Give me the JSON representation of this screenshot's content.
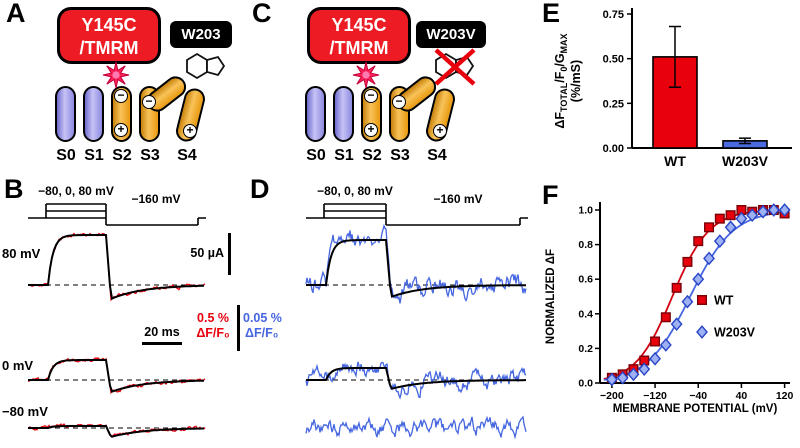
{
  "panel_a": {
    "letter": "A",
    "box_red_line1": "Y145C",
    "box_red_line2": "/TMRM",
    "box_black": "W203",
    "segments": [
      "S0",
      "S1",
      "S2",
      "S3",
      "S4"
    ]
  },
  "panel_b": {
    "letter": "B",
    "protocol_pulse": "−80, 0, 80 mV",
    "protocol_tail": "−160 mV",
    "trace_labels": [
      "80 mV",
      "0 mV",
      "−80 mV"
    ],
    "scale_current": "50 µA",
    "scale_time": "20 ms",
    "scale_df_value": "0.5 %",
    "scale_df_unit": "ΔF/F₀",
    "trace_color": "#e8000d",
    "traces": [
      {
        "name": "80mV",
        "plateau": 50,
        "dip": 14,
        "noise": 2.1
      },
      {
        "name": "0mV",
        "plateau": 20,
        "dip": 12,
        "noise": 2.1
      },
      {
        "name": "minus80mV",
        "plateau": 2,
        "dip": 9,
        "noise": 1.9
      }
    ]
  },
  "panel_c": {
    "letter": "C",
    "box_red_line1": "Y145C",
    "box_red_line2": "/TMRM",
    "box_black": "W203V",
    "segments": [
      "S0",
      "S1",
      "S2",
      "S3",
      "S4"
    ]
  },
  "panel_d": {
    "letter": "D",
    "protocol_pulse": "−80, 0, 80 mV",
    "protocol_tail": "−160 mV",
    "scale_df_value": "0.05 %",
    "scale_df_unit": "ΔF/F₀",
    "trace_color": "#4566e0",
    "traces": [
      {
        "name": "80mV",
        "plateau": 45,
        "dip": 12,
        "noise": 11,
        "fit": true
      },
      {
        "name": "0mV",
        "plateau": 12,
        "dip": 9,
        "noise": 10,
        "fit": true
      },
      {
        "name": "minus80mV",
        "plateau": 0,
        "dip": 0,
        "noise": 9,
        "fit": false,
        "dashed": false
      }
    ]
  },
  "panel_e": {
    "letter": "E"
  },
  "panel_f": {
    "letter": "F"
  },
  "chart_data": [
    {
      "panel": "E",
      "type": "bar",
      "categories": [
        "WT",
        "W203V"
      ],
      "values": [
        0.51,
        0.04
      ],
      "errors": [
        0.17,
        0.015
      ],
      "bar_colors": [
        "#e8000d",
        "#4a6be0"
      ],
      "ylabel": "ΔF_TOTAL/F_0/G_MAX (%/mS)",
      "ylabel_parts": [
        {
          "t": "ΔF"
        },
        {
          "t": "TOTAL",
          "sub": true
        },
        {
          "t": "/F"
        },
        {
          "t": "0",
          "sub": true
        },
        {
          "t": "/G"
        },
        {
          "t": "MAX",
          "sub": true
        }
      ],
      "ylabel_units": "(%/mS)",
      "ylim": [
        0,
        0.75
      ],
      "yticks": [
        "0.00",
        "0.25",
        "0.50",
        "0.75"
      ],
      "grid": false
    },
    {
      "panel": "F",
      "type": "scatter",
      "xlabel": "MEMBRANE POTENTIAL (mV)",
      "ylabel": "NORMALIZED ΔF",
      "xlim": [
        -222,
        130
      ],
      "ylim": [
        0,
        1.0
      ],
      "xticks": [
        -200,
        -120,
        -40,
        40,
        120
      ],
      "yticks": [
        0,
        0.2,
        0.4,
        0.6,
        0.8,
        1.0
      ],
      "grid": false,
      "legend_position": "right-middle",
      "series": [
        {
          "name": "WT",
          "marker": "square",
          "fill": "#e8000d",
          "edge": "#7a0008",
          "line": "#d0000f",
          "fit": {
            "v50": -88,
            "k": 34
          },
          "x": [
            -200,
            -180,
            -160,
            -140,
            -120,
            -100,
            -80,
            -60,
            -40,
            -20,
            0,
            20,
            40,
            60,
            80,
            100,
            120
          ],
          "y": [
            0.03,
            0.05,
            0.08,
            0.13,
            0.24,
            0.38,
            0.55,
            0.7,
            0.82,
            0.9,
            0.95,
            0.97,
            1.0,
            0.99,
            1.0,
            1.0,
            0.98
          ]
        },
        {
          "name": "W203V",
          "marker": "diamond",
          "fill": "#9db1f3",
          "edge": "#2743c6",
          "line": "#4566e0",
          "fit": {
            "v50": -55,
            "k": 40
          },
          "x": [
            -200,
            -180,
            -160,
            -140,
            -120,
            -100,
            -80,
            -60,
            -40,
            -20,
            0,
            20,
            40,
            60,
            80,
            100,
            120
          ],
          "y": [
            0.02,
            0.03,
            0.05,
            0.08,
            0.14,
            0.22,
            0.34,
            0.47,
            0.6,
            0.72,
            0.82,
            0.9,
            0.95,
            0.97,
            0.99,
            1.0,
            1.0
          ]
        }
      ]
    }
  ]
}
